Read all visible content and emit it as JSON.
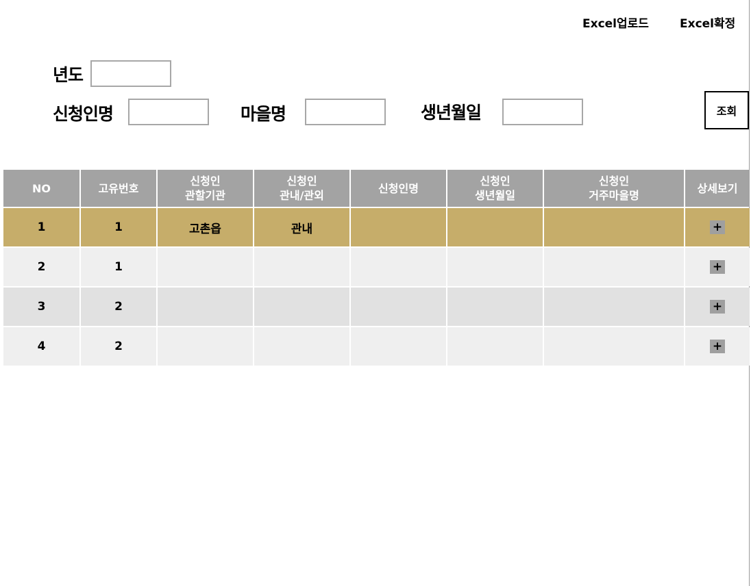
{
  "header": {
    "excel_upload": "Excel업로드",
    "excel_confirm": "Excel확정"
  },
  "filters": {
    "year_label": "년도",
    "year_value": "",
    "applicant_name_label": "신청인명",
    "applicant_name_value": "",
    "village_name_label": "마을명",
    "village_name_value": "",
    "birthdate_label": "생년월일",
    "birthdate_value": "",
    "search_button": "조회"
  },
  "table": {
    "columns": [
      "NO",
      "고유번호",
      "신청인\n관할기관",
      "신청인\n관내/관외",
      "신청인명",
      "신청인\n생년월일",
      "신청인\n거주마을명",
      "상세보기"
    ],
    "rows": [
      {
        "no": "1",
        "id": "1",
        "agency": "고촌읍",
        "inout": "관내",
        "name": "",
        "birth": "",
        "village": "",
        "detail": "+"
      },
      {
        "no": "2",
        "id": "1",
        "agency": "",
        "inout": "",
        "name": "",
        "birth": "",
        "village": "",
        "detail": "+"
      },
      {
        "no": "3",
        "id": "2",
        "agency": "",
        "inout": "",
        "name": "",
        "birth": "",
        "village": "",
        "detail": "+"
      },
      {
        "no": "4",
        "id": "2",
        "agency": "",
        "inout": "",
        "name": "",
        "birth": "",
        "village": "",
        "detail": "+"
      }
    ]
  },
  "colors": {
    "header_bg": "#a3a3a3",
    "selected_row": "#c6ad6a",
    "row_light": "#efefef",
    "row_dark": "#e1e1e1",
    "detail_button": "#9f9f9f"
  },
  "icons": {
    "detail": "plus-icon"
  }
}
